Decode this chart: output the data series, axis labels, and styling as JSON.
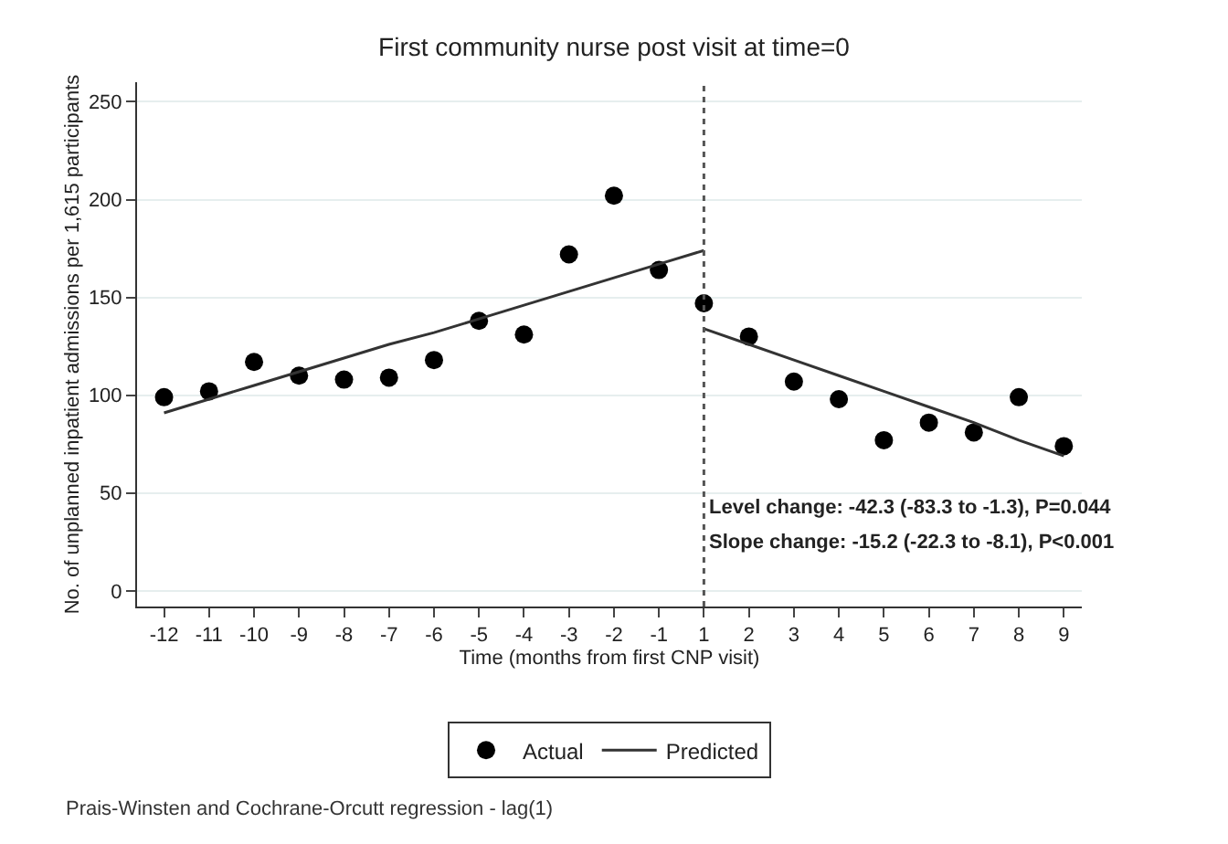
{
  "chart_data": {
    "type": "scatter",
    "title": "First community nurse post visit at time=0",
    "xlabel": "Time (months from first CNP visit)",
    "ylabel": "No. of unplanned inpatient admissions per 1,615 participants",
    "categories": [
      "-12",
      "-11",
      "-10",
      "-9",
      "-8",
      "-7",
      "-6",
      "-5",
      "-4",
      "-3",
      "-2",
      "-1",
      "1",
      "2",
      "3",
      "4",
      "5",
      "6",
      "7",
      "8",
      "9"
    ],
    "series": [
      {
        "name": "Actual",
        "color": "#000000",
        "marker": "circle",
        "values": [
          99,
          102,
          117,
          110,
          108,
          109,
          118,
          138,
          131,
          172,
          202,
          164,
          147,
          130,
          107,
          98,
          77,
          86,
          81,
          99,
          74
        ]
      },
      {
        "name": "Predicted",
        "type": "line",
        "color": "#333333",
        "line_style": "solid",
        "values": [
          91,
          98,
          105,
          112,
          119,
          126,
          132,
          139,
          146,
          153,
          160,
          167,
          174,
          null,
          null,
          null,
          null,
          null,
          null,
          null,
          null
        ]
      },
      {
        "type": "line",
        "color": "#333333",
        "line_style": "solid",
        "values": [
          null,
          null,
          null,
          null,
          null,
          null,
          null,
          null,
          null,
          null,
          null,
          null,
          134,
          126,
          118,
          110,
          102,
          94,
          86,
          77,
          69
        ]
      }
    ],
    "ylim": [
      -8,
      260
    ],
    "yticks": [
      0,
      50,
      100,
      150,
      200,
      250
    ],
    "grid": "y",
    "legend": "bottom",
    "ref_lines": [
      {
        "axis": "x",
        "value": "1",
        "color": "#555555",
        "line_style": "dotted"
      }
    ],
    "annotations": [
      "Level change: -42.3 (-83.3 to -1.3), P=0.044",
      "Slope change: -15.2 (-22.3 to -8.1), P<0.001",
      "Prais-Winsten and Cochrane-Orcutt regression - lag(1)"
    ]
  }
}
